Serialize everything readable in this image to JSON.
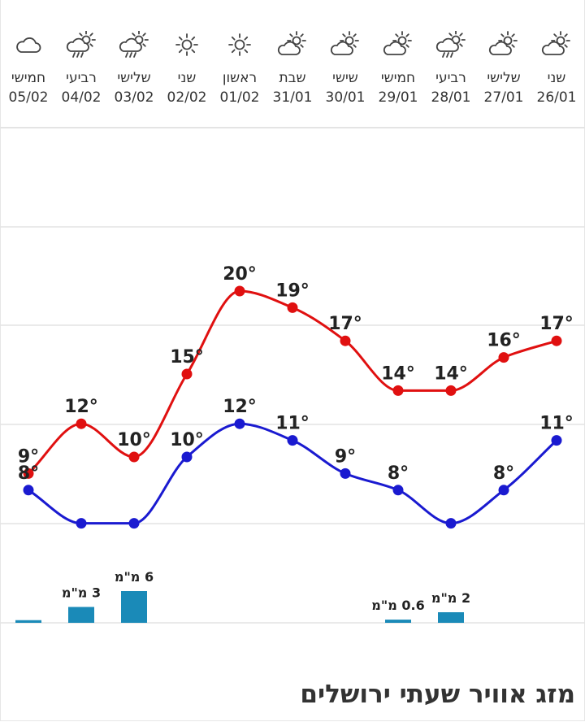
{
  "title": "מזג אוויר שעתי ירושלים",
  "colors": {
    "high": "#e01010",
    "low": "#1a1ad0",
    "rain": "#1a8ab8",
    "grid": "#e4e4e4",
    "icon": "#444444"
  },
  "days": [
    {
      "name": "חמישי",
      "date": "05/02",
      "icon": "cloud-icon"
    },
    {
      "name": "רביעי",
      "date": "04/02",
      "icon": "sun-cloud-rain-icon"
    },
    {
      "name": "שלישי",
      "date": "03/02",
      "icon": "sun-cloud-rain-icon"
    },
    {
      "name": "שני",
      "date": "02/02",
      "icon": "sun-icon"
    },
    {
      "name": "ראשון",
      "date": "01/02",
      "icon": "sun-icon"
    },
    {
      "name": "שבת",
      "date": "31/01",
      "icon": "sun-cloud-icon"
    },
    {
      "name": "שישי",
      "date": "30/01",
      "icon": "sun-cloud-icon"
    },
    {
      "name": "חמישי",
      "date": "29/01",
      "icon": "sun-cloud-icon"
    },
    {
      "name": "רביעי",
      "date": "28/01",
      "icon": "sun-cloud-rain-icon"
    },
    {
      "name": "שלישי",
      "date": "27/01",
      "icon": "sun-cloud-icon"
    },
    {
      "name": "שני",
      "date": "26/01",
      "icon": "sun-cloud-icon"
    }
  ],
  "chart_data": {
    "type": "line",
    "categories": [
      "05/02",
      "04/02",
      "03/02",
      "02/02",
      "01/02",
      "31/01",
      "30/01",
      "29/01",
      "28/01",
      "27/01",
      "26/01"
    ],
    "series": [
      {
        "key": "high",
        "values": [
          9,
          12,
          10,
          15,
          20,
          19,
          17,
          14,
          14,
          16,
          17
        ],
        "labels": [
          "9°",
          "12°",
          "10°",
          "15°",
          "20°",
          "19°",
          "17°",
          "14°",
          "14°",
          "16°",
          "17°"
        ]
      },
      {
        "key": "low",
        "values": [
          8,
          6,
          6,
          10,
          12,
          11,
          9,
          8,
          6,
          8,
          11
        ],
        "labels": [
          "8°",
          "",
          "",
          "10°",
          "12°",
          "11°",
          "9°",
          "8°",
          "",
          "8°",
          "11°"
        ]
      }
    ],
    "precipitation": {
      "values": [
        0.5,
        3,
        6,
        0,
        0,
        0,
        0,
        0.6,
        2,
        0,
        0
      ],
      "labels": [
        "",
        "3 מ\"מ",
        "6 מ\"מ",
        "",
        "",
        "",
        "",
        "0.6 מ\"מ",
        "2 מ\"מ",
        "",
        ""
      ]
    },
    "grid": true
  }
}
